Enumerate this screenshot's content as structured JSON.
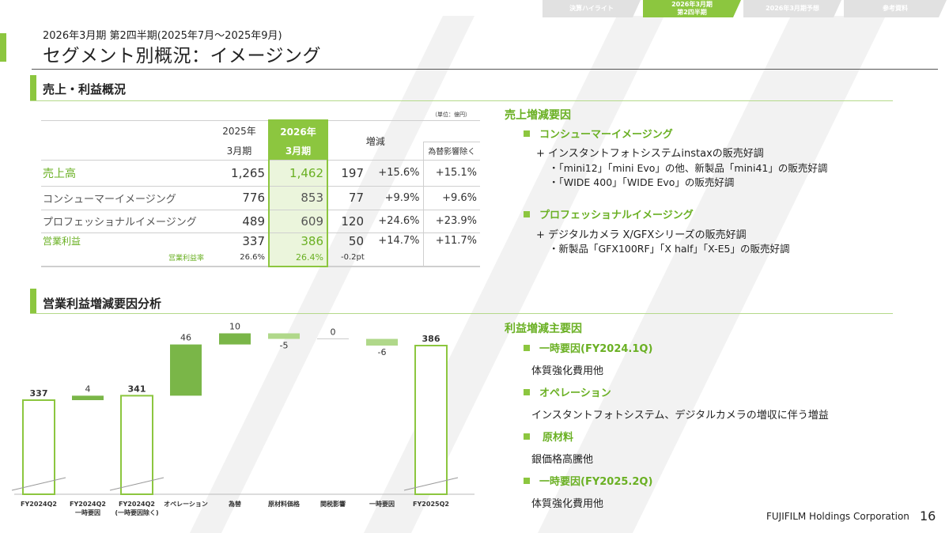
{
  "nav": {
    "tabs": [
      {
        "label": "決算ハイライト",
        "active": false
      },
      {
        "label": "2026年3月期\n第2四半期",
        "active": true
      },
      {
        "label": "2026年3月期予想",
        "active": false
      },
      {
        "label": "参考資料",
        "active": false
      }
    ]
  },
  "header": {
    "subtitle": "2026年3月期 第2四半期(2025年7月～2025年9月)",
    "title": "セグメント別概況：イメージング"
  },
  "sections": {
    "sales": "売上・利益概況",
    "op_analysis": "営業利益増減要因分析"
  },
  "table": {
    "unit": "（単位：億円）",
    "col_prev_line1": "2025年",
    "col_prev_line2": "3月期",
    "col_curr_line1": "2026年",
    "col_curr_line2": "3月期",
    "col_change": "増減",
    "col_fx_excl": "為替影響除く",
    "rows": [
      {
        "label": "売上高",
        "prev": "1,265",
        "curr": "1,462",
        "diff": "197",
        "pct": "+15.6%",
        "fx": "+15.1%"
      },
      {
        "label": "コンシューマーイメージング",
        "prev": "776",
        "curr": "853",
        "diff": "77",
        "pct": "+9.9%",
        "fx": "+9.6%"
      },
      {
        "label": "プロフェッショナルイメージング",
        "prev": "489",
        "curr": "609",
        "diff": "120",
        "pct": "+24.6%",
        "fx": "+23.9%"
      },
      {
        "label": "営業利益",
        "prev": "337",
        "curr": "386",
        "diff": "50",
        "pct": "+14.7%",
        "fx": "+11.7%"
      },
      {
        "label": "営業利益率",
        "prev": "26.6%",
        "curr": "26.4%",
        "diff": "-0.2pt",
        "pct": "",
        "fx": ""
      }
    ]
  },
  "sales_factors": {
    "heading": "売上増減要因",
    "consumer_title": "コンシューマーイメージング",
    "consumer_main": "+ インスタントフォトシステムinstaxの販売好調",
    "consumer_b1": "・「mini12」「mini Evo」の他、新製品「mini41」の販売好調",
    "consumer_b2": "・「WIDE 400」「WIDE Evo」の販売好調",
    "pro_title": "プロフェッショナルイメージング",
    "pro_main": "+ デジタルカメラ X/GFXシリーズの販売好調",
    "pro_b1": "・新製品「GFX100RF」「X half」「X-E5」の販売好調"
  },
  "profit_factors": {
    "heading": "利益増減主要因",
    "f1_title": "一時要因(FY2024.1Q)",
    "f1_text": "体質強化費用他",
    "f2_title": "オペレーション",
    "f2_text": "インスタントフォトシステム、デジタルカメラの増収に伴う増益",
    "f3_title": "原材料",
    "f3_text": "銀価格高騰他",
    "f4_title": "一時要因(FY2025.2Q)",
    "f4_text": "体質強化費用他"
  },
  "chart_data": {
    "type": "bar",
    "subtype": "waterfall",
    "categories": [
      "FY2024Q2",
      "FY2024Q2\n一時要因",
      "FY2024Q2\n(一時要因除く)",
      "オペレーション",
      "為替",
      "原材料価格",
      "関税影響",
      "一時要因",
      "FY2025Q2"
    ],
    "values": [
      337,
      4,
      341,
      46,
      10,
      -5,
      0,
      -6,
      386
    ],
    "labels": [
      "337",
      "4",
      "341",
      "46",
      "10",
      "-5",
      "0",
      "-6",
      "386"
    ],
    "kinds": [
      "total",
      "delta",
      "total",
      "delta",
      "delta",
      "delta",
      "delta",
      "delta",
      "total"
    ],
    "axis_break": true,
    "colors": {
      "total_outline": "#8cc63f",
      "positive": "#7ab648",
      "negative": "#b0d88a"
    }
  },
  "footer": {
    "company": "FUJIFILM Holdings Corporation",
    "page": "16"
  }
}
